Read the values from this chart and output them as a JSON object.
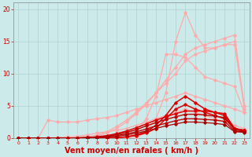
{
  "background_color": "#cceaea",
  "grid_color": "#aacccc",
  "xlabel": "Vent moyen/en rafales ( km/h )",
  "xlabel_color": "#cc0000",
  "xlabel_fontsize": 7,
  "xtick_color": "#cc0000",
  "ytick_color": "#cc0000",
  "ytick_labels": [
    0,
    5,
    10,
    15,
    20
  ],
  "xlim": [
    -0.5,
    23.5
  ],
  "ylim": [
    0,
    21
  ],
  "x": [
    0,
    1,
    2,
    3,
    4,
    5,
    6,
    7,
    8,
    9,
    10,
    11,
    12,
    13,
    14,
    15,
    16,
    17,
    18,
    19,
    20,
    21,
    22,
    23
  ],
  "series": [
    {
      "y": [
        0,
        0,
        0,
        0,
        0,
        0,
        0,
        0,
        0,
        0,
        0,
        0,
        0,
        1,
        3,
        7,
        15,
        19.5,
        16,
        14,
        14,
        14.5,
        14.5,
        5
      ],
      "color": "#ffaaaa",
      "lw": 0.9
    },
    {
      "y": [
        0,
        0,
        0,
        0,
        0,
        0,
        0,
        0,
        0.3,
        0.8,
        1.5,
        2.5,
        3.8,
        5.2,
        7,
        9,
        11,
        13,
        14,
        14.5,
        15,
        15.5,
        16,
        5
      ],
      "color": "#ffaaaa",
      "lw": 0.9
    },
    {
      "y": [
        0,
        0,
        0,
        0,
        0,
        0,
        0,
        0.2,
        0.5,
        1,
        1.8,
        2.8,
        4,
        5.5,
        7,
        8.5,
        10,
        12,
        13,
        13.5,
        14,
        14.5,
        15,
        4.5
      ],
      "color": "#ffaaaa",
      "lw": 0.9
    },
    {
      "y": [
        0,
        0,
        0,
        0,
        0,
        0,
        0,
        0,
        0,
        0,
        0,
        0,
        1,
        3,
        6.5,
        13,
        13,
        12.5,
        11,
        9.5,
        9,
        8.5,
        8,
        4
      ],
      "color": "#ffaaaa",
      "lw": 0.9
    },
    {
      "y": [
        0,
        0,
        0,
        2.8,
        2.5,
        2.5,
        2.5,
        2.8,
        3,
        3.2,
        3.5,
        4,
        4.5,
        5,
        5.5,
        6,
        6.5,
        7,
        6.5,
        6,
        5.5,
        5,
        4.5,
        4
      ],
      "color": "#ffaaaa",
      "lw": 0.9
    },
    {
      "y": [
        0,
        0,
        0,
        0,
        0.1,
        0.2,
        0.3,
        0.5,
        0.8,
        1,
        1.2,
        1.5,
        2,
        2.5,
        3,
        3.5,
        4,
        4.5,
        4,
        3.5,
        3,
        2.5,
        2,
        1.5
      ],
      "color": "#ffaaaa",
      "lw": 0.9
    },
    {
      "y": [
        0,
        0,
        0,
        0,
        0,
        0,
        0,
        0,
        0,
        0,
        0.1,
        0.2,
        0.5,
        1,
        2,
        3.5,
        5.5,
        6.5,
        5.5,
        4.5,
        4,
        3.5,
        1.5,
        1.2
      ],
      "color": "#dd0000",
      "lw": 1.1
    },
    {
      "y": [
        0,
        0,
        0,
        0,
        0,
        0,
        0,
        0,
        0,
        0,
        0.1,
        0.2,
        0.4,
        0.8,
        1.5,
        3,
        4.5,
        5.2,
        4.5,
        4,
        3.5,
        3,
        1.5,
        1.2
      ],
      "color": "#dd0000",
      "lw": 1.1
    },
    {
      "y": [
        0,
        0,
        0,
        0,
        0,
        0,
        0.05,
        0.1,
        0.2,
        0.4,
        0.7,
        1.1,
        1.6,
        2.2,
        2.8,
        3.3,
        3.8,
        4.2,
        4.2,
        4.2,
        4.0,
        3.8,
        1.5,
        1.2
      ],
      "color": "#dd0000",
      "lw": 1.1
    },
    {
      "y": [
        0,
        0,
        0,
        0,
        0,
        0,
        0.04,
        0.08,
        0.15,
        0.3,
        0.55,
        0.9,
        1.3,
        1.9,
        2.4,
        2.9,
        3.3,
        3.7,
        3.7,
        3.6,
        3.4,
        3.2,
        1.3,
        1.1
      ],
      "color": "#bb0000",
      "lw": 1.0
    },
    {
      "y": [
        0,
        0,
        0,
        0,
        0,
        0,
        0.03,
        0.06,
        0.12,
        0.22,
        0.4,
        0.65,
        1,
        1.4,
        1.9,
        2.3,
        2.7,
        3.0,
        3.0,
        2.9,
        2.8,
        2.6,
        1.1,
        1.0
      ],
      "color": "#bb0000",
      "lw": 1.0
    },
    {
      "y": [
        0,
        0,
        0,
        0,
        0,
        0,
        0.02,
        0.04,
        0.09,
        0.17,
        0.3,
        0.5,
        0.78,
        1.1,
        1.5,
        1.9,
        2.2,
        2.5,
        2.5,
        2.4,
        2.3,
        2.1,
        1.0,
        0.9
      ],
      "color": "#aa0000",
      "lw": 0.9
    }
  ]
}
